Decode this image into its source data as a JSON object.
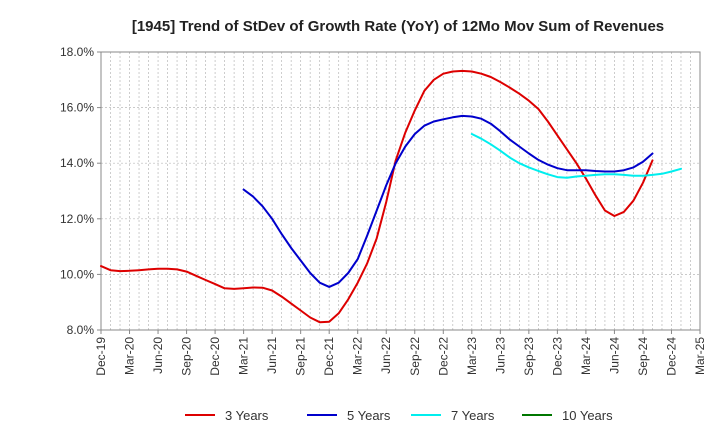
{
  "chart_data": {
    "type": "line",
    "title": "[1945]  Trend of StDev of Growth Rate (YoY) of 12Mo Mov Sum of Revenues",
    "xlabel": "",
    "ylabel": "",
    "ylim": [
      8.0,
      18.0
    ],
    "y_ticks": [
      "8.0%",
      "10.0%",
      "12.0%",
      "14.0%",
      "16.0%",
      "18.0%"
    ],
    "y_tick_values": [
      8,
      10,
      12,
      14,
      16,
      18
    ],
    "x_tick_labels": [
      "Dec-19",
      "Mar-20",
      "Jun-20",
      "Sep-20",
      "Dec-20",
      "Mar-21",
      "Jun-21",
      "Sep-21",
      "Dec-21",
      "Mar-22",
      "Jun-22",
      "Sep-22",
      "Dec-22",
      "Mar-23",
      "Jun-23",
      "Sep-23",
      "Dec-23",
      "Mar-24",
      "Jun-24",
      "Sep-24",
      "Dec-24",
      "Mar-25"
    ],
    "x_start": "Dec-19",
    "x_months_total": 63,
    "grid": true,
    "legend_position": "bottom",
    "series": [
      {
        "name": "3 Years",
        "color": "#dd0000",
        "start_month_index": 0,
        "values": [
          10.3,
          10.15,
          10.12,
          10.13,
          10.15,
          10.18,
          10.2,
          10.2,
          10.18,
          10.1,
          9.95,
          9.8,
          9.65,
          9.5,
          9.48,
          9.5,
          9.53,
          9.52,
          9.42,
          9.2,
          8.95,
          8.7,
          8.45,
          8.28,
          8.3,
          8.6,
          9.1,
          9.7,
          10.4,
          11.3,
          12.6,
          14.1,
          15.1,
          15.9,
          16.6,
          17.0,
          17.22,
          17.3,
          17.32,
          17.3,
          17.22,
          17.1,
          16.92,
          16.72,
          16.5,
          16.25,
          15.95,
          15.5,
          15.0,
          14.5,
          14.0,
          13.45,
          12.85,
          12.3,
          12.1,
          12.25,
          12.65,
          13.3,
          14.1
        ]
      },
      {
        "name": "5 Years",
        "color": "#0000cc",
        "start_month_index": 15,
        "values": [
          13.05,
          12.8,
          12.45,
          12.0,
          11.45,
          10.95,
          10.5,
          10.05,
          9.7,
          9.55,
          9.7,
          10.05,
          10.55,
          11.4,
          12.3,
          13.2,
          14.0,
          14.6,
          15.05,
          15.35,
          15.5,
          15.58,
          15.65,
          15.7,
          15.68,
          15.6,
          15.42,
          15.15,
          14.85,
          14.6,
          14.35,
          14.12,
          13.95,
          13.82,
          13.75,
          13.75,
          13.75,
          13.72,
          13.7,
          13.7,
          13.75,
          13.85,
          14.05,
          14.35
        ]
      },
      {
        "name": "7 Years",
        "color": "#00eeee",
        "start_month_index": 39,
        "values": [
          15.05,
          14.88,
          14.68,
          14.45,
          14.2,
          14.0,
          13.85,
          13.72,
          13.6,
          13.5,
          13.48,
          13.52,
          13.55,
          13.58,
          13.6,
          13.6,
          13.58,
          13.55,
          13.55,
          13.58,
          13.62,
          13.7,
          13.8
        ]
      },
      {
        "name": "10 Years",
        "color": "#007700",
        "start_month_index": 0,
        "values": []
      }
    ]
  }
}
